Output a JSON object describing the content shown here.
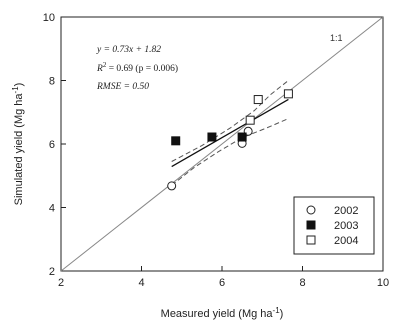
{
  "chart_data": {
    "type": "scatter",
    "xlabel": "Measured yield (Mg ha",
    "xlabel_sup": "-1",
    "xlabel_close": ")",
    "ylabel": "Simulated yield (Mg ha",
    "ylabel_sup": "-1",
    "ylabel_close": ")",
    "xlim": [
      2,
      10
    ],
    "ylim": [
      2,
      10
    ],
    "x_ticks": [
      2,
      4,
      6,
      8,
      10
    ],
    "y_ticks": [
      2,
      4,
      6,
      8,
      10
    ],
    "x_tick_labels": [
      "2",
      "4",
      "6",
      "8",
      "10"
    ],
    "y_tick_labels": [
      "2",
      "4",
      "6",
      "8",
      "10"
    ],
    "grid": false,
    "legend_position": "bottom-right",
    "series": [
      {
        "name": "2002",
        "marker": "open-circle",
        "points": [
          [
            4.75,
            4.68
          ],
          [
            6.5,
            6.02
          ],
          [
            6.65,
            6.4
          ]
        ]
      },
      {
        "name": "2003",
        "marker": "filled-square",
        "points": [
          [
            4.85,
            6.1
          ],
          [
            5.75,
            6.22
          ],
          [
            6.5,
            6.22
          ]
        ]
      },
      {
        "name": "2004",
        "marker": "open-square",
        "points": [
          [
            6.7,
            6.75
          ],
          [
            6.9,
            7.4
          ],
          [
            7.65,
            7.58
          ]
        ]
      }
    ],
    "regression": {
      "slope": 0.73,
      "intercept": 1.82,
      "x_range": [
        4.75,
        7.65
      ]
    },
    "confidence_band": {
      "upper": [
        [
          4.75,
          5.45
        ],
        [
          5.5,
          5.95
        ],
        [
          6.2,
          6.5
        ],
        [
          6.8,
          7.05
        ],
        [
          7.2,
          7.55
        ],
        [
          7.65,
          8.0
        ]
      ],
      "lower": [
        [
          4.75,
          4.7
        ],
        [
          5.3,
          5.25
        ],
        [
          5.9,
          5.75
        ],
        [
          6.5,
          6.2
        ],
        [
          7.1,
          6.5
        ],
        [
          7.65,
          6.8
        ]
      ]
    },
    "reference_line": {
      "label": "1:1",
      "from": [
        2,
        2
      ],
      "to": [
        10,
        10
      ]
    },
    "annotations": {
      "equation": "y = 0.73x + 1.82",
      "r2_prefix": "R",
      "r2_sup": "2",
      "r2_rest": " = 0.69 (p = 0.006)",
      "rmse": "RMSE = 0.50"
    }
  }
}
